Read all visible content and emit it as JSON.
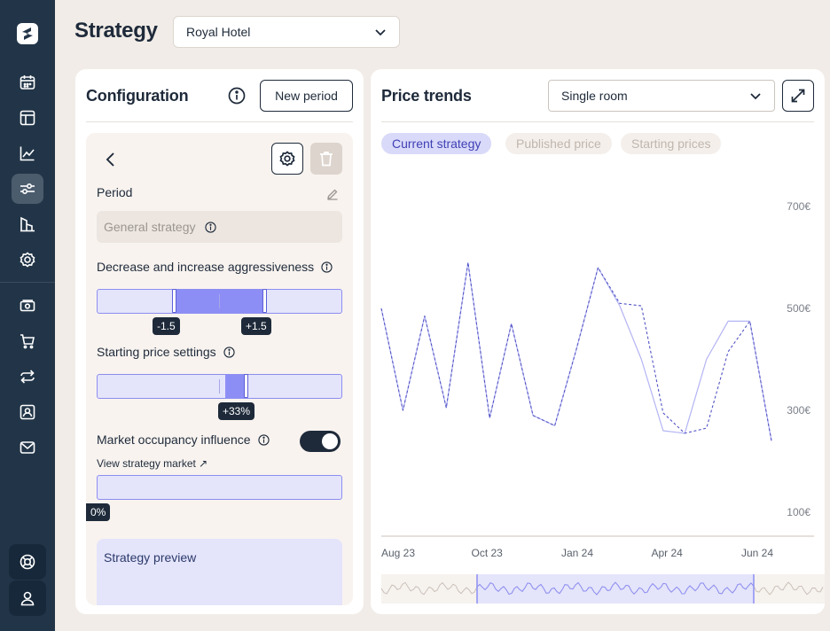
{
  "colors": {
    "sidebar": "#223548",
    "accent": "#8d8ef5",
    "accent_dark": "#5d5fd6",
    "background": "#f1ece7"
  },
  "sidebar": {
    "logo": "s-logo-icon",
    "items": [
      {
        "icon": "calendar-icon",
        "active": false
      },
      {
        "icon": "layout-icon",
        "active": false
      },
      {
        "icon": "line-chart-icon",
        "active": false
      },
      {
        "icon": "sliders-icon",
        "active": true
      },
      {
        "icon": "building-chart-icon",
        "active": false
      },
      {
        "icon": "gear-icon",
        "active": false
      },
      {
        "icon": "money-icon",
        "active": false
      },
      {
        "icon": "cart-icon",
        "active": false
      },
      {
        "icon": "swap-icon",
        "active": false
      },
      {
        "icon": "user-card-icon",
        "active": false
      },
      {
        "icon": "mail-icon",
        "active": false
      }
    ],
    "bottom": [
      {
        "icon": "lifebuoy-icon"
      },
      {
        "icon": "user-icon"
      }
    ]
  },
  "header": {
    "title": "Strategy",
    "hotel": "Royal Hotel"
  },
  "config": {
    "title": "Configuration",
    "new_period": "New period",
    "period_label": "Period",
    "period_value": "General strategy",
    "aggressiveness_label": "Decrease and increase aggressiveness",
    "aggr_min": "-1.5",
    "aggr_max": "+1.5",
    "starting_label": "Starting price settings",
    "starting_value": "+33%",
    "occupancy_label": "Market occupancy influence",
    "occupancy_on": true,
    "view_market": "View strategy market ↗",
    "occupancy_value": "0%",
    "preview_title": "Strategy preview"
  },
  "trends": {
    "title": "Price trends",
    "room": "Single room",
    "tabs": [
      {
        "label": "Current  strategy",
        "active": true
      },
      {
        "label": "Published price",
        "active": false
      },
      {
        "label": "Starting prices",
        "active": false
      }
    ]
  },
  "chart_data": {
    "type": "line",
    "x_labels": [
      "Aug 23",
      "Oct 23",
      "Jan 24",
      "Apr 24",
      "Jun 24"
    ],
    "y_ticks": [
      "700€",
      "500€",
      "300€",
      "100€"
    ],
    "ylim": [
      100,
      700
    ],
    "series": [
      {
        "style": "dashed",
        "values": [
          500,
          300,
          485,
          305,
          590,
          285,
          470,
          290,
          270,
          420,
          580,
          510,
          505,
          295,
          255,
          265,
          415,
          475,
          240
        ]
      },
      {
        "style": "solid",
        "values": [
          500,
          300,
          485,
          305,
          590,
          285,
          470,
          290,
          270,
          420,
          580,
          505,
          400,
          260,
          255,
          400,
          475,
          475,
          240
        ]
      }
    ]
  }
}
